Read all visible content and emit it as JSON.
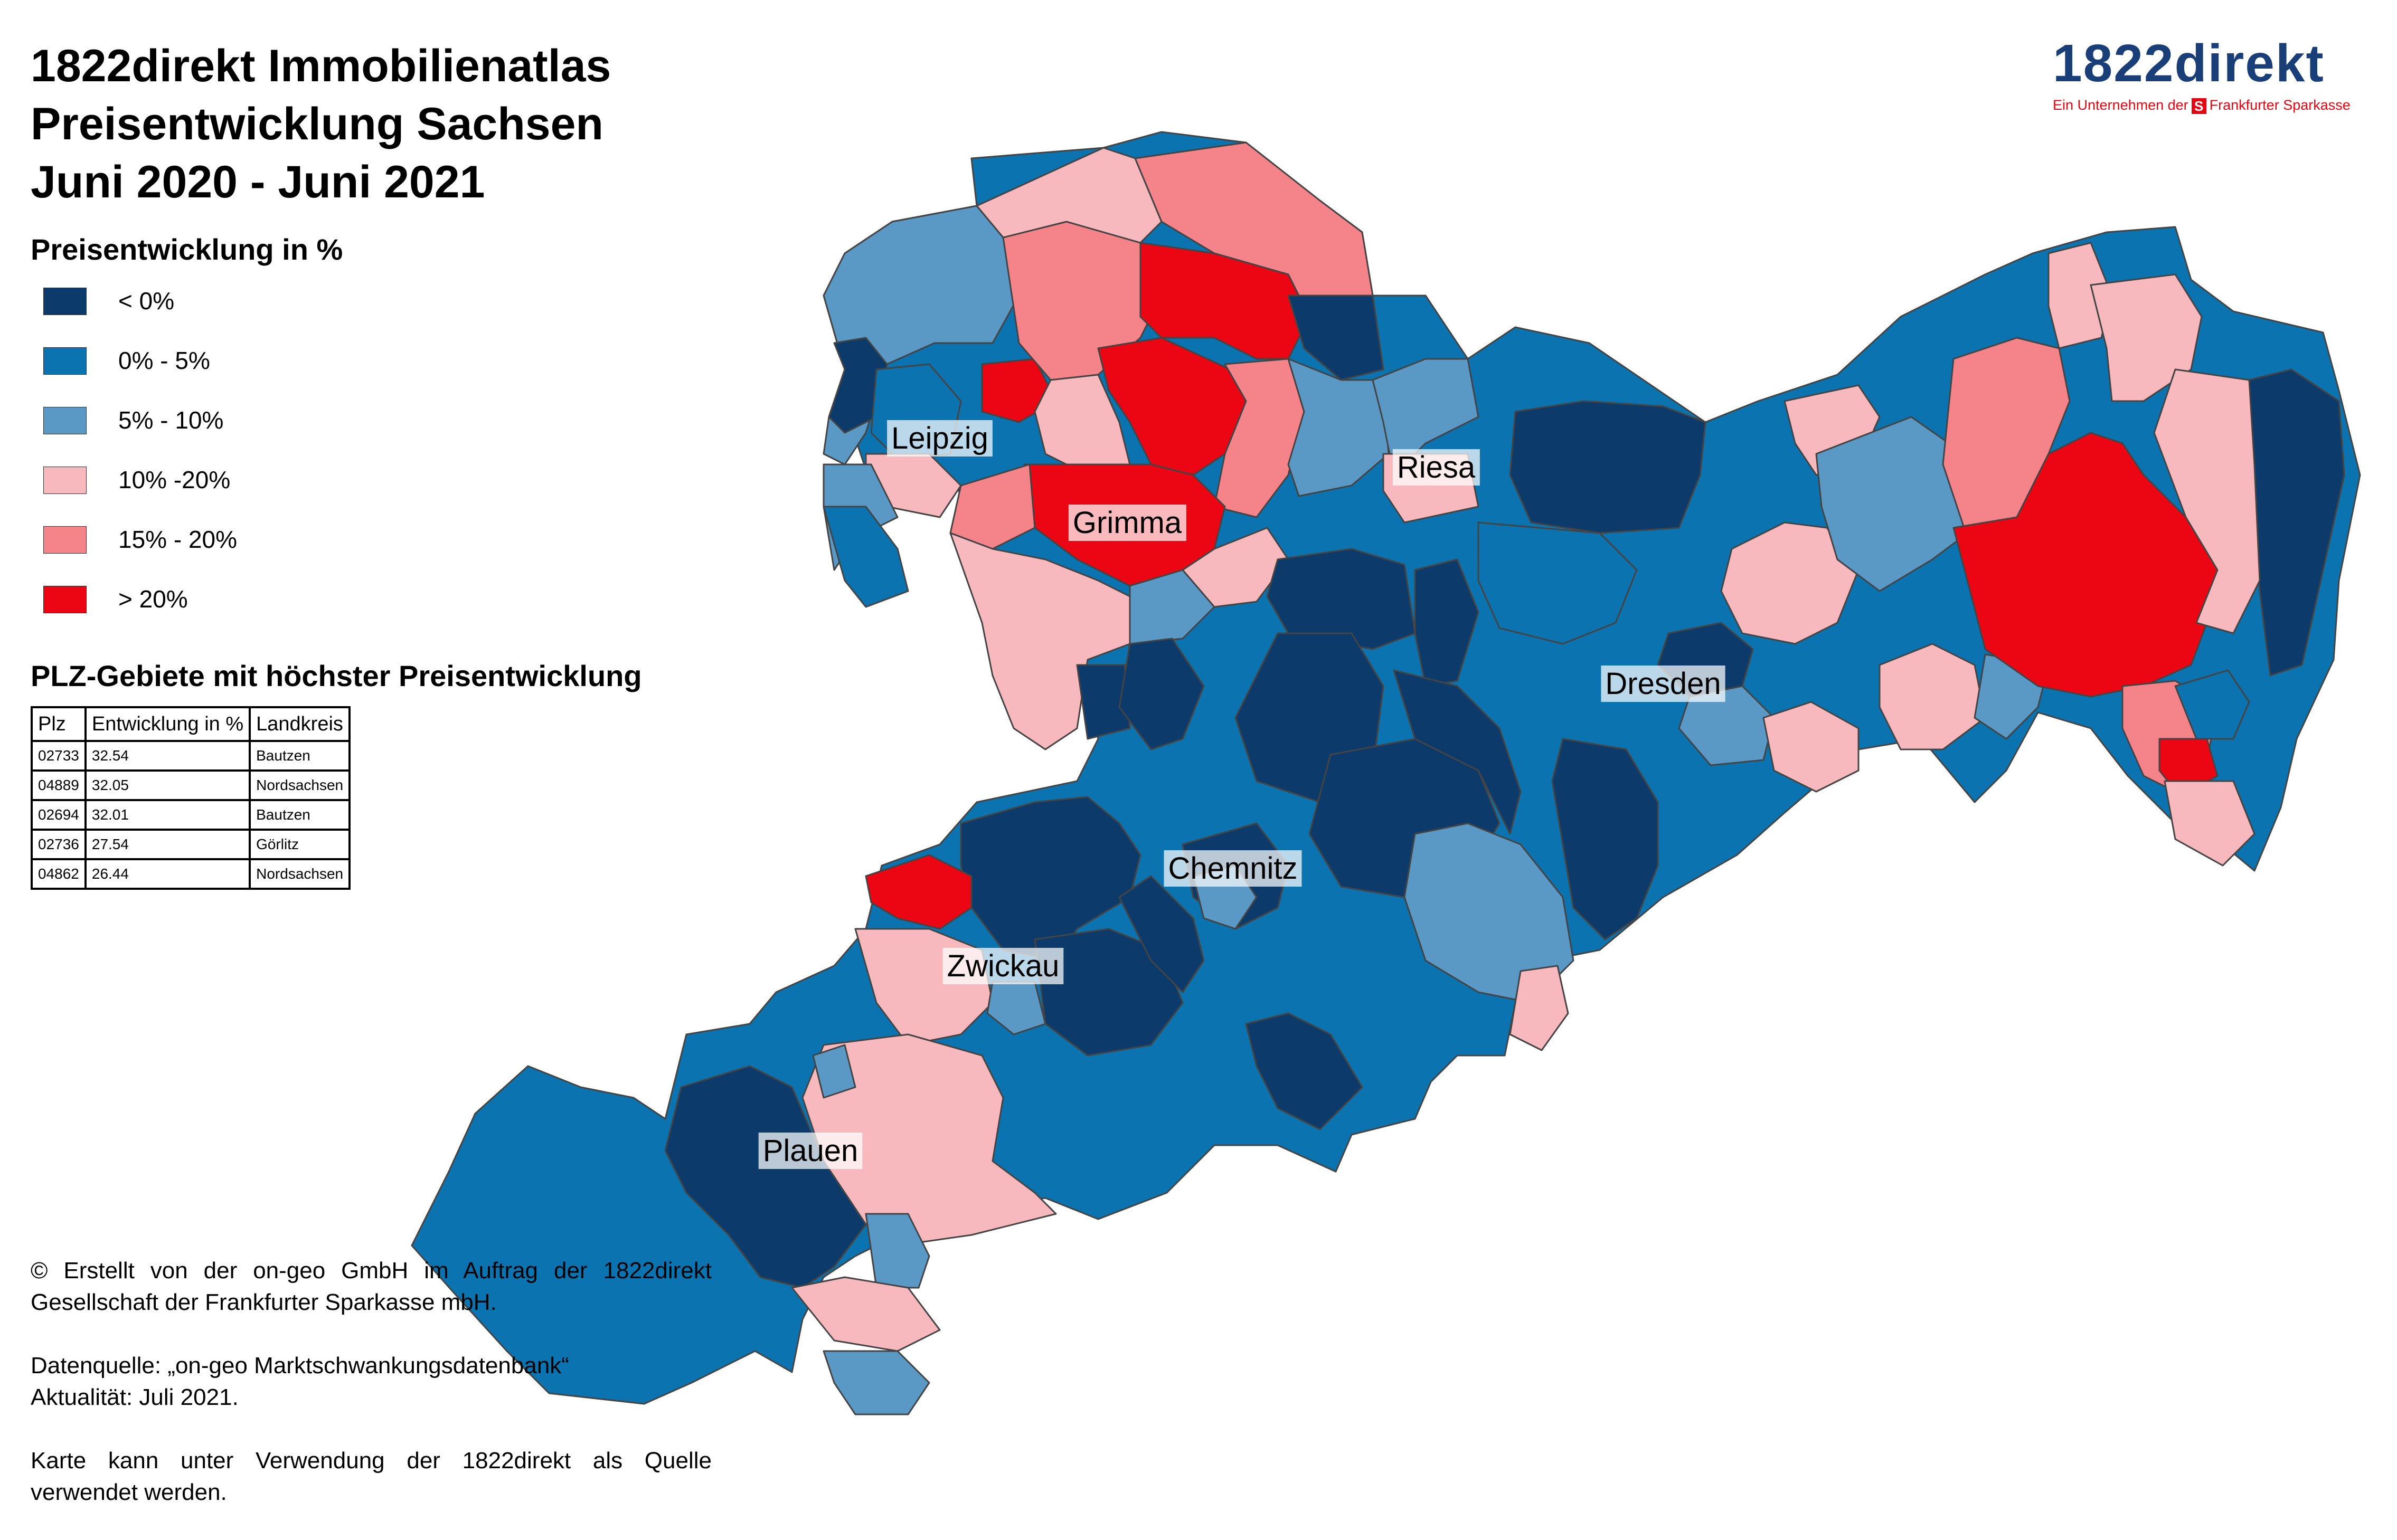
{
  "title": {
    "line1": "1822direkt Immobilienatlas",
    "line2": "Preisentwicklung Sachsen",
    "line3": "Juni 2020 - Juni 2021"
  },
  "legend": {
    "heading": "Preisentwicklung in %",
    "items": [
      {
        "label": "< 0%",
        "color": "#0b3a6b"
      },
      {
        "label": "0% - 5%",
        "color": "#0a73b0"
      },
      {
        "label": "5% - 10%",
        "color": "#5a98c6"
      },
      {
        "label": "10% -20%",
        "color": "#f7b9bd"
      },
      {
        "label": "15% - 20%",
        "color": "#f4848a"
      },
      {
        "label": "> 20%",
        "color": "#ec0614"
      }
    ]
  },
  "top_table": {
    "heading": "PLZ-Gebiete mit höchster Preisentwicklung",
    "columns": [
      "Plz",
      "Entwicklung in %",
      "Landkreis"
    ],
    "rows": [
      [
        "02733",
        "32.54",
        "Bautzen"
      ],
      [
        "04889",
        "32.05",
        "Nordsachsen"
      ],
      [
        "02694",
        "32.01",
        "Bautzen"
      ],
      [
        "02736",
        "27.54",
        "Görlitz"
      ],
      [
        "04862",
        "26.44",
        "Nordsachsen"
      ]
    ]
  },
  "map": {
    "cities": [
      "Leipzig",
      "Riesa",
      "Grimma",
      "Dresden",
      "Chemnitz",
      "Zwickau",
      "Plauen"
    ],
    "region_colors": {
      "neg": "#0b3a6b",
      "p0_5": "#0a73b0",
      "p5_10": "#5a98c6",
      "p10_20": "#f7b9bd",
      "p15_20": "#f4848a",
      "p20": "#ec0614"
    }
  },
  "credits": {
    "line1": "© Erstellt von der on-geo GmbH im Auftrag der 1822direkt",
    "line2": "Gesellschaft der Frankfurter Sparkasse mbH.",
    "line3": "Datenquelle: „on-geo Marktschwankungsdatenbank“",
    "line4": "Aktualität: Juli 2021.",
    "line5": "Karte kann unter Verwendung der 1822direkt als Quelle",
    "line6": "verwendet werden."
  },
  "logo": {
    "wordmark": "1822direkt",
    "tagline_pre": "Ein Unternehmen der",
    "tagline_mark": "S",
    "tagline_post": "Frankfurter Sparkasse",
    "color": "#1a3f78",
    "accent": "#e30613"
  }
}
